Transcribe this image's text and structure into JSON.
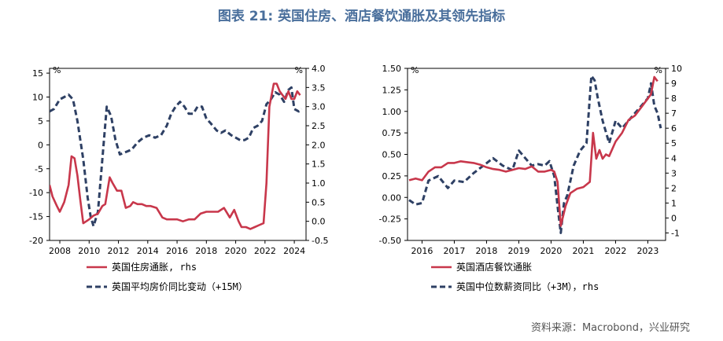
{
  "figure_title": "图表 21: 英国住房、酒店餐饮通胀及其领先指标",
  "source_note": "资料来源：Macrobond，兴业研究",
  "colors": {
    "series_red": "#c8374b",
    "series_navy": "#2e4064",
    "title_blue": "#4a6f9c"
  },
  "chart_data": [
    {
      "type": "line",
      "title": "",
      "left_axis": {
        "unit": "%",
        "ylim": [
          -20,
          16
        ],
        "ticks": [
          15,
          10,
          5,
          0,
          -5,
          -10,
          -15,
          -20
        ],
        "tick_labels": [
          "15",
          "10",
          "5",
          "0",
          "-5",
          "-10",
          "-15",
          "-20"
        ]
      },
      "right_axis": {
        "unit": "%",
        "ylim": [
          -0.5,
          4.0
        ],
        "ticks": [
          4.0,
          3.5,
          3.0,
          2.5,
          2.0,
          1.5,
          1.0,
          0.5,
          0.0,
          -0.5
        ],
        "tick_labels": [
          "4.0",
          "3.5",
          "3.0",
          "2.5",
          "2.0",
          "1.5",
          "1.0",
          "0.5",
          "0.0",
          "-0.5"
        ]
      },
      "xlim": [
        2007.3,
        2024.8
      ],
      "x_ticks": [
        2008,
        2010,
        2012,
        2014,
        2016,
        2018,
        2020,
        2022,
        2024
      ],
      "x_tick_labels": [
        "2008",
        "2010",
        "2012",
        "2014",
        "2016",
        "2018",
        "2020",
        "2022",
        "2024"
      ],
      "legend": [
        "英国住房通胀, rhs",
        "英国平均房价同比变动（+15M）"
      ],
      "legend_placement": "bottom",
      "series": [
        {
          "name": "英国住房通胀, rhs",
          "axis": "right",
          "style": "solid",
          "x": [
            2007.3,
            2007.5,
            2007.8,
            2008.0,
            2008.3,
            2008.6,
            2008.8,
            2009.0,
            2009.2,
            2009.4,
            2009.6,
            2009.8,
            2010.0,
            2010.3,
            2010.6,
            2010.9,
            2011.1,
            2011.4,
            2011.6,
            2011.9,
            2012.2,
            2012.5,
            2012.8,
            2013.0,
            2013.3,
            2013.6,
            2013.9,
            2014.2,
            2014.6,
            2015.0,
            2015.3,
            2015.7,
            2016.0,
            2016.4,
            2016.8,
            2017.2,
            2017.6,
            2018.0,
            2018.4,
            2018.8,
            2019.2,
            2019.6,
            2019.9,
            2020.2,
            2020.4,
            2020.7,
            2021.0,
            2021.3,
            2021.6,
            2021.9,
            2022.1,
            2022.3,
            2022.45,
            2022.6,
            2022.8,
            2023.0,
            2023.2,
            2023.4,
            2023.6,
            2023.8,
            2024.0,
            2024.2,
            2024.4
          ],
          "y": [
            0.95,
            0.65,
            0.4,
            0.25,
            0.5,
            0.95,
            1.7,
            1.65,
            1.2,
            0.55,
            -0.05,
            0.0,
            0.05,
            0.15,
            0.2,
            0.4,
            0.45,
            1.15,
            1.0,
            0.8,
            0.8,
            0.35,
            0.4,
            0.5,
            0.45,
            0.45,
            0.4,
            0.4,
            0.35,
            0.1,
            0.05,
            0.05,
            0.05,
            0.0,
            0.05,
            0.05,
            0.2,
            0.25,
            0.25,
            0.25,
            0.35,
            0.1,
            0.3,
            0.0,
            -0.15,
            -0.15,
            -0.2,
            -0.15,
            -0.1,
            -0.05,
            1.0,
            3.0,
            3.3,
            3.6,
            3.6,
            3.4,
            3.3,
            3.2,
            3.4,
            3.2,
            3.2,
            3.4,
            3.3
          ]
        },
        {
          "name": "英国平均房价同比变动（+15M）",
          "axis": "left",
          "style": "dashed",
          "x": [
            2007.3,
            2007.6,
            2008.0,
            2008.3,
            2008.6,
            2008.9,
            2009.2,
            2009.6,
            2009.9,
            2010.1,
            2010.3,
            2010.6,
            2010.9,
            2011.2,
            2011.5,
            2011.8,
            2012.1,
            2012.5,
            2012.9,
            2013.3,
            2013.7,
            2014.1,
            2014.5,
            2014.9,
            2015.3,
            2015.6,
            2015.9,
            2016.2,
            2016.5,
            2016.8,
            2017.1,
            2017.4,
            2017.7,
            2018.0,
            2018.3,
            2018.7,
            2019.0,
            2019.3,
            2019.7,
            2020.0,
            2020.3,
            2020.6,
            2020.9,
            2021.2,
            2021.5,
            2021.8,
            2022.1,
            2022.4,
            2022.7,
            2023.0,
            2023.3,
            2023.6,
            2023.8,
            2024.0,
            2024.3,
            2024.5
          ],
          "y": [
            7.0,
            7.5,
            9.5,
            10.0,
            10.5,
            9.5,
            5.0,
            -3.0,
            -11.0,
            -15.0,
            -17.0,
            -14.0,
            -3.0,
            8.0,
            6.0,
            1.0,
            -2.0,
            -1.5,
            -1.0,
            0.5,
            1.5,
            2.0,
            1.5,
            2.0,
            4.0,
            6.5,
            8.0,
            9.0,
            8.0,
            6.5,
            6.5,
            8.0,
            8.0,
            5.5,
            4.5,
            3.0,
            2.5,
            3.0,
            2.0,
            1.5,
            1.0,
            1.0,
            1.5,
            3.5,
            4.0,
            5.0,
            8.5,
            9.5,
            11.0,
            10.5,
            9.0,
            11.5,
            12.0,
            7.5,
            7.0,
            7.5
          ]
        }
      ]
    },
    {
      "type": "line",
      "title": "",
      "left_axis": {
        "unit": "%",
        "ylim": [
          -0.5,
          1.5
        ],
        "ticks": [
          1.5,
          1.25,
          1.0,
          0.75,
          0.5,
          0.25,
          0.0,
          -0.25,
          -0.5
        ],
        "tick_labels": [
          "1.50",
          "1.25",
          "1.00",
          "0.75",
          "0.50",
          "0.25",
          "0.00",
          "-0.25",
          "-0.50"
        ]
      },
      "right_axis": {
        "unit": "%",
        "ylim": [
          -1.5,
          10
        ],
        "ticks": [
          10,
          9,
          8,
          7,
          6,
          5,
          4,
          3,
          2,
          1,
          0,
          -1
        ],
        "tick_labels": [
          "10",
          "9",
          "8",
          "7",
          "6",
          "5",
          "4",
          "3",
          "2",
          "1",
          "0",
          "-1"
        ]
      },
      "xlim": [
        2015.55,
        2023.55
      ],
      "x_ticks": [
        2016,
        2017,
        2018,
        2019,
        2020,
        2021,
        2022,
        2023
      ],
      "x_tick_labels": [
        "2016",
        "2017",
        "2018",
        "2019",
        "2020",
        "2021",
        "2022",
        "2023"
      ],
      "legend": [
        "英国酒店餐饮通胀",
        "英国中位数薪资同比（+3M），rhs"
      ],
      "legend_placement": "bottom",
      "series": [
        {
          "name": "英国酒店餐饮通胀",
          "axis": "left",
          "style": "solid",
          "x": [
            2015.6,
            2015.8,
            2016.0,
            2016.2,
            2016.4,
            2016.6,
            2016.8,
            2017.0,
            2017.2,
            2017.4,
            2017.6,
            2017.8,
            2018.0,
            2018.2,
            2018.4,
            2018.6,
            2018.8,
            2019.0,
            2019.2,
            2019.4,
            2019.6,
            2019.8,
            2020.0,
            2020.1,
            2020.2,
            2020.3,
            2020.45,
            2020.6,
            2020.8,
            2021.0,
            2021.2,
            2021.3,
            2021.4,
            2021.5,
            2021.6,
            2021.7,
            2021.8,
            2022.0,
            2022.2,
            2022.4,
            2022.6,
            2022.8,
            2023.0,
            2023.1,
            2023.2,
            2023.3
          ],
          "y": [
            0.2,
            0.22,
            0.2,
            0.3,
            0.35,
            0.35,
            0.4,
            0.4,
            0.42,
            0.41,
            0.4,
            0.38,
            0.35,
            0.33,
            0.32,
            0.3,
            0.32,
            0.34,
            0.33,
            0.36,
            0.3,
            0.3,
            0.32,
            0.3,
            0.18,
            -0.33,
            -0.1,
            0.05,
            0.1,
            0.12,
            0.18,
            0.75,
            0.45,
            0.55,
            0.45,
            0.5,
            0.48,
            0.65,
            0.75,
            0.9,
            0.95,
            1.05,
            1.15,
            1.2,
            1.4,
            1.35
          ]
        },
        {
          "name": "英国中位数薪资同比（+3M），rhs",
          "axis": "right",
          "style": "dashed",
          "x": [
            2015.6,
            2015.8,
            2016.0,
            2016.2,
            2016.5,
            2016.8,
            2017.0,
            2017.3,
            2017.6,
            2017.9,
            2018.2,
            2018.5,
            2018.8,
            2019.0,
            2019.2,
            2019.4,
            2019.6,
            2019.8,
            2019.95,
            2020.1,
            2020.2,
            2020.3,
            2020.4,
            2020.5,
            2020.7,
            2020.9,
            2021.1,
            2021.25,
            2021.35,
            2021.45,
            2021.6,
            2021.8,
            2022.0,
            2022.2,
            2022.4,
            2022.6,
            2022.8,
            2023.0,
            2023.1,
            2023.2,
            2023.3,
            2023.4
          ],
          "y": [
            1.2,
            0.9,
            1.0,
            2.5,
            2.8,
            2.0,
            2.5,
            2.4,
            3.0,
            3.5,
            4.0,
            3.5,
            3.2,
            4.5,
            4.0,
            3.5,
            3.6,
            3.5,
            3.8,
            2.8,
            0.8,
            -1.0,
            1.0,
            1.5,
            3.5,
            4.5,
            5.0,
            9.5,
            9.2,
            8.0,
            6.5,
            5.0,
            6.5,
            6.0,
            6.5,
            7.0,
            7.5,
            8.0,
            9.0,
            7.5,
            7.0,
            6.0
          ]
        }
      ]
    }
  ]
}
